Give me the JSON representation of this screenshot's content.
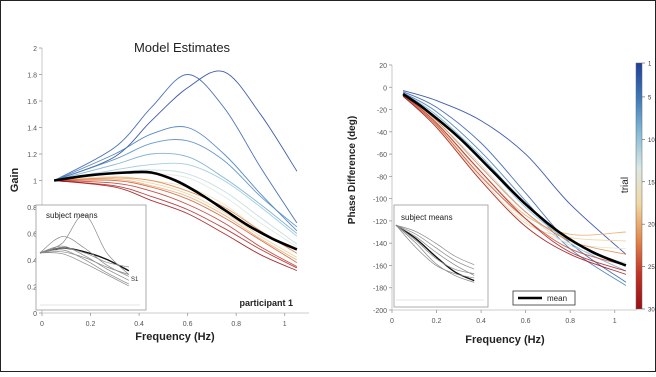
{
  "chart_data": [
    {
      "type": "line",
      "title": "Model Estimates",
      "xlabel": "Frequency (Hz)",
      "ylabel": "Gain",
      "xlim": [
        0,
        1.1
      ],
      "ylim": [
        0,
        2
      ],
      "xticks": [
        "0",
        "0.2",
        "0.4",
        "0.6",
        "0.8",
        "1"
      ],
      "yticks": [
        "0",
        "0.2",
        "0.4",
        "0.6",
        "0.8",
        "1",
        "1.2",
        "1.4",
        "1.6",
        "1.8",
        "2"
      ],
      "annotation": "participant 1",
      "series": [
        {
          "trial": 1,
          "x": [
            0.05,
            0.3,
            0.45,
            0.6,
            0.75,
            0.9,
            1.05
          ],
          "y": [
            1.0,
            1.18,
            1.45,
            1.7,
            1.82,
            1.5,
            1.07
          ]
        },
        {
          "trial": 3,
          "x": [
            0.05,
            0.3,
            0.45,
            0.6,
            0.75,
            0.9,
            1.05
          ],
          "y": [
            1.0,
            1.25,
            1.55,
            1.8,
            1.55,
            1.1,
            0.68
          ]
        },
        {
          "trial": 5,
          "x": [
            0.05,
            0.3,
            0.45,
            0.6,
            0.75,
            0.9,
            1.05
          ],
          "y": [
            1.0,
            1.2,
            1.35,
            1.4,
            1.2,
            0.9,
            0.62
          ]
        },
        {
          "trial": 6,
          "x": [
            0.05,
            0.3,
            0.45,
            0.6,
            0.75,
            0.9,
            1.05
          ],
          "y": [
            1.0,
            1.16,
            1.28,
            1.3,
            1.15,
            0.88,
            0.65
          ]
        },
        {
          "trial": 8,
          "x": [
            0.05,
            0.3,
            0.45,
            0.6,
            0.75,
            0.9,
            1.05
          ],
          "y": [
            1.0,
            1.12,
            1.2,
            1.18,
            1.02,
            0.82,
            0.6
          ]
        },
        {
          "trial": 10,
          "x": [
            0.05,
            0.3,
            0.45,
            0.6,
            0.75,
            0.9,
            1.05
          ],
          "y": [
            1.0,
            1.08,
            1.12,
            1.12,
            1.0,
            0.8,
            0.58
          ]
        },
        {
          "trial": 12,
          "x": [
            0.05,
            0.3,
            0.45,
            0.6,
            0.75,
            0.9,
            1.05
          ],
          "y": [
            1.0,
            1.06,
            1.08,
            1.05,
            0.92,
            0.72,
            0.52
          ]
        },
        {
          "trial": 14,
          "x": [
            0.05,
            0.3,
            0.45,
            0.6,
            0.75,
            0.9,
            1.05
          ],
          "y": [
            1.0,
            1.05,
            1.05,
            1.02,
            0.88,
            0.68,
            0.5
          ]
        },
        {
          "trial": 16,
          "x": [
            0.05,
            0.3,
            0.45,
            0.6,
            0.75,
            0.9,
            1.05
          ],
          "y": [
            1.0,
            1.03,
            1.0,
            0.95,
            0.82,
            0.62,
            0.45
          ]
        },
        {
          "trial": 18,
          "x": [
            0.05,
            0.3,
            0.45,
            0.6,
            0.75,
            0.9,
            1.05
          ],
          "y": [
            1.0,
            1.02,
            0.98,
            0.9,
            0.76,
            0.58,
            0.42
          ]
        },
        {
          "trial": 20,
          "x": [
            0.05,
            0.3,
            0.45,
            0.6,
            0.75,
            0.9,
            1.05
          ],
          "y": [
            1.0,
            1.01,
            0.96,
            0.88,
            0.74,
            0.56,
            0.4
          ]
        },
        {
          "trial": 22,
          "x": [
            0.05,
            0.3,
            0.45,
            0.6,
            0.75,
            0.9,
            1.05
          ],
          "y": [
            1.0,
            1.02,
            1.0,
            0.92,
            0.8,
            0.62,
            0.45
          ]
        },
        {
          "trial": 24,
          "x": [
            0.05,
            0.3,
            0.45,
            0.6,
            0.75,
            0.9,
            1.05
          ],
          "y": [
            1.0,
            1.0,
            0.95,
            0.86,
            0.72,
            0.55,
            0.38
          ]
        },
        {
          "trial": 26,
          "x": [
            0.05,
            0.3,
            0.45,
            0.6,
            0.75,
            0.9,
            1.05
          ],
          "y": [
            1.0,
            0.98,
            0.92,
            0.82,
            0.68,
            0.5,
            0.35
          ]
        },
        {
          "trial": 28,
          "x": [
            0.05,
            0.3,
            0.45,
            0.6,
            0.75,
            0.9,
            1.05
          ],
          "y": [
            1.0,
            0.96,
            0.88,
            0.78,
            0.64,
            0.48,
            0.34
          ]
        },
        {
          "trial": 30,
          "x": [
            0.05,
            0.3,
            0.45,
            0.6,
            0.75,
            0.9,
            1.05
          ],
          "y": [
            1.0,
            0.95,
            0.85,
            0.75,
            0.6,
            0.44,
            0.32
          ]
        },
        {
          "trial": "mean",
          "x": [
            0.05,
            0.2,
            0.35,
            0.45,
            0.55,
            0.65,
            0.75,
            0.85,
            0.95,
            1.05
          ],
          "y": [
            1.0,
            1.04,
            1.06,
            1.06,
            1.0,
            0.9,
            0.78,
            0.66,
            0.56,
            0.48
          ]
        }
      ],
      "inset": {
        "title": "subject means",
        "label": "S1",
        "xlim": [
          0,
          0.45
        ],
        "ylim": [
          0,
          1
        ],
        "series": [
          {
            "x": [
              0.0,
              0.1,
              0.2,
              0.3,
              0.4
            ],
            "y": [
              0.55,
              0.6,
              0.56,
              0.48,
              0.36
            ],
            "highlight": true
          },
          {
            "x": [
              0.0,
              0.1,
              0.2,
              0.3,
              0.4
            ],
            "y": [
              0.55,
              0.72,
              0.6,
              0.42,
              0.3
            ]
          },
          {
            "x": [
              0.0,
              0.1,
              0.2,
              0.3,
              0.4
            ],
            "y": [
              0.55,
              0.65,
              0.95,
              0.55,
              0.32
            ]
          },
          {
            "x": [
              0.0,
              0.1,
              0.2,
              0.3,
              0.4
            ],
            "y": [
              0.55,
              0.62,
              0.52,
              0.38,
              0.26
            ]
          },
          {
            "x": [
              0.0,
              0.1,
              0.2,
              0.3,
              0.4
            ],
            "y": [
              0.55,
              0.58,
              0.48,
              0.34,
              0.22
            ]
          },
          {
            "x": [
              0.0,
              0.1,
              0.2,
              0.3,
              0.4
            ],
            "y": [
              0.55,
              0.56,
              0.5,
              0.4,
              0.32
            ]
          },
          {
            "x": [
              0.0,
              0.1,
              0.2,
              0.3,
              0.4
            ],
            "y": [
              0.55,
              0.54,
              0.44,
              0.32,
              0.2
            ]
          },
          {
            "x": [
              0.0,
              0.1,
              0.2,
              0.3,
              0.4
            ],
            "y": [
              0.55,
              0.6,
              0.55,
              0.45,
              0.4
            ]
          }
        ]
      }
    },
    {
      "type": "line",
      "xlabel": "Frequency (Hz)",
      "ylabel": "Phase Difference (deg)",
      "xlim": [
        0,
        1.1
      ],
      "ylim": [
        -200,
        20
      ],
      "xticks": [
        "0",
        "0.2",
        "0.4",
        "0.6",
        "0.8",
        "1"
      ],
      "yticks": [
        "20",
        "0",
        "-20",
        "-40",
        "-60",
        "-80",
        "-100",
        "-120",
        "-140",
        "-160",
        "-180",
        "-200"
      ],
      "legend": {
        "label": "mean",
        "placement": "bottom-center"
      },
      "series": [
        {
          "trial": 1,
          "x": [
            0.05,
            0.2,
            0.4,
            0.6,
            0.8,
            1.05
          ],
          "y": [
            -3,
            -12,
            -30,
            -60,
            -105,
            -150
          ]
        },
        {
          "trial": 3,
          "x": [
            0.05,
            0.2,
            0.4,
            0.6,
            0.8,
            1.05
          ],
          "y": [
            -4,
            -18,
            -50,
            -95,
            -140,
            -175
          ]
        },
        {
          "trial": 5,
          "x": [
            0.05,
            0.2,
            0.4,
            0.6,
            0.8,
            1.05
          ],
          "y": [
            -5,
            -22,
            -58,
            -102,
            -145,
            -178
          ]
        },
        {
          "trial": 8,
          "x": [
            0.05,
            0.2,
            0.4,
            0.6,
            0.8,
            1.05
          ],
          "y": [
            -5,
            -25,
            -62,
            -105,
            -140,
            -165
          ]
        },
        {
          "trial": 10,
          "x": [
            0.05,
            0.2,
            0.4,
            0.6,
            0.8,
            1.05
          ],
          "y": [
            -6,
            -28,
            -65,
            -108,
            -138,
            -160
          ]
        },
        {
          "trial": 12,
          "x": [
            0.05,
            0.2,
            0.4,
            0.6,
            0.8,
            1.05
          ],
          "y": [
            -6,
            -30,
            -70,
            -112,
            -142,
            -158
          ]
        },
        {
          "trial": 15,
          "x": [
            0.05,
            0.2,
            0.4,
            0.6,
            0.8,
            1.05
          ],
          "y": [
            -7,
            -32,
            -78,
            -120,
            -140,
            -145
          ]
        },
        {
          "trial": 18,
          "x": [
            0.05,
            0.2,
            0.4,
            0.6,
            0.8,
            1.05
          ],
          "y": [
            -8,
            -35,
            -82,
            -122,
            -135,
            -138
          ]
        },
        {
          "trial": 20,
          "x": [
            0.05,
            0.2,
            0.4,
            0.6,
            0.8,
            1.05
          ],
          "y": [
            -8,
            -33,
            -76,
            -115,
            -132,
            -130
          ]
        },
        {
          "trial": 22,
          "x": [
            0.05,
            0.2,
            0.4,
            0.6,
            0.8,
            1.05
          ],
          "y": [
            -7,
            -30,
            -72,
            -112,
            -138,
            -150
          ]
        },
        {
          "trial": 25,
          "x": [
            0.05,
            0.2,
            0.4,
            0.6,
            0.8,
            1.05
          ],
          "y": [
            -8,
            -34,
            -80,
            -118,
            -145,
            -160
          ]
        },
        {
          "trial": 28,
          "x": [
            0.05,
            0.2,
            0.4,
            0.6,
            0.8,
            1.05
          ],
          "y": [
            -7,
            -32,
            -76,
            -118,
            -148,
            -165
          ]
        },
        {
          "trial": 30,
          "x": [
            0.05,
            0.2,
            0.4,
            0.6,
            0.8,
            1.05
          ],
          "y": [
            -8,
            -36,
            -84,
            -125,
            -150,
            -168
          ]
        },
        {
          "trial": "mean",
          "x": [
            0.05,
            0.15,
            0.3,
            0.45,
            0.6,
            0.75,
            0.9,
            1.05
          ],
          "y": [
            -6,
            -20,
            -45,
            -75,
            -105,
            -130,
            -148,
            -160
          ]
        }
      ],
      "inset": {
        "title": "subject means",
        "xlim": [
          0,
          0.45
        ],
        "ylim": [
          -200,
          -100
        ],
        "series": [
          {
            "x": [
              0.0,
              0.1,
              0.2,
              0.3,
              0.4
            ],
            "y": [
              -115,
              -130,
              -150,
              -168,
              -178
            ],
            "highlight": true
          },
          {
            "x": [
              0.0,
              0.1,
              0.2,
              0.3,
              0.4
            ],
            "y": [
              -115,
              -128,
              -145,
              -160,
              -172
            ]
          },
          {
            "x": [
              0.0,
              0.1,
              0.2,
              0.3,
              0.4
            ],
            "y": [
              -115,
              -135,
              -158,
              -172,
              -180
            ]
          },
          {
            "x": [
              0.0,
              0.1,
              0.2,
              0.3,
              0.4
            ],
            "y": [
              -115,
              -125,
              -140,
              -155,
              -165
            ]
          },
          {
            "x": [
              0.0,
              0.1,
              0.2,
              0.3,
              0.4
            ],
            "y": [
              -115,
              -140,
              -160,
              -170,
              -175
            ]
          },
          {
            "x": [
              0.0,
              0.1,
              0.2,
              0.3,
              0.4
            ],
            "y": [
              -115,
              -122,
              -135,
              -150,
              -160
            ]
          },
          {
            "x": [
              0.0,
              0.1,
              0.2,
              0.3,
              0.4
            ],
            "y": [
              -115,
              -132,
              -152,
              -165,
              -170
            ]
          }
        ]
      }
    }
  ],
  "colorbar": {
    "label": "trial",
    "range": [
      1,
      30
    ],
    "ticks": [
      "1",
      "5",
      "10",
      "15",
      "20",
      "25",
      "30"
    ],
    "colors": [
      "#1f3f9a",
      "#3e78b8",
      "#86bcd8",
      "#dbe8e4",
      "#f1d8a2",
      "#e58a4b",
      "#c23226",
      "#9c0e15"
    ]
  }
}
